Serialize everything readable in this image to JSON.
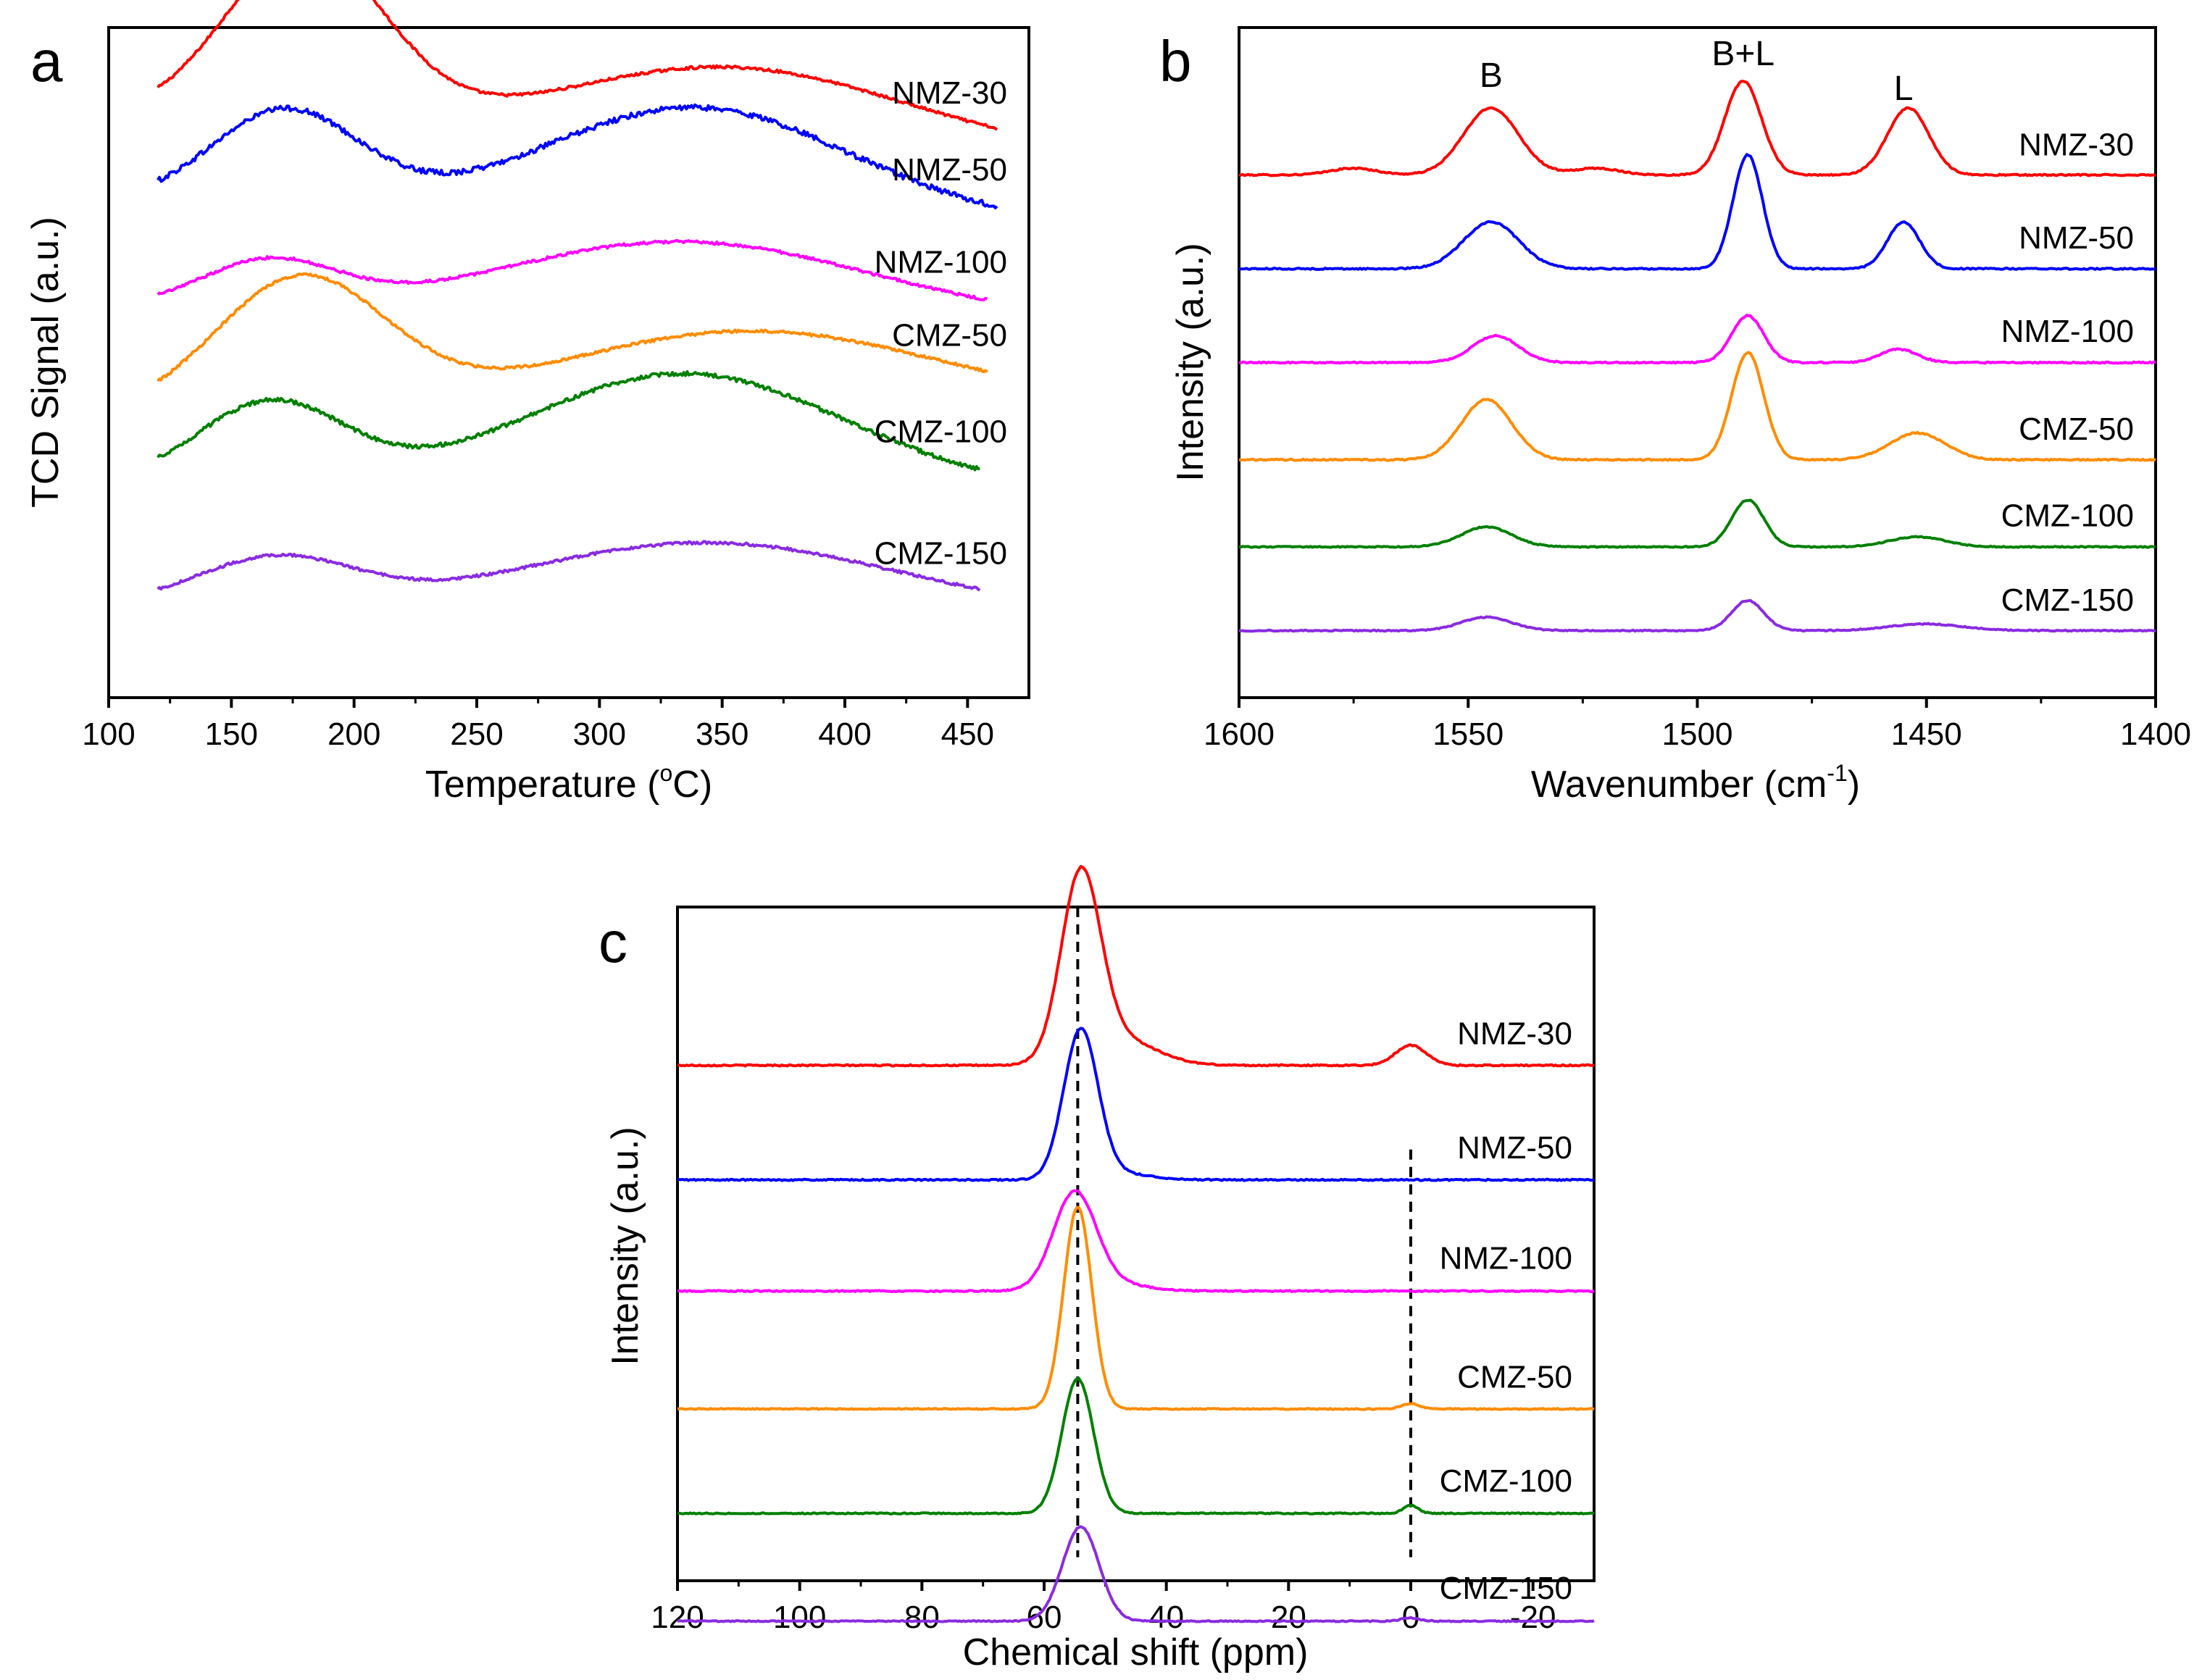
{
  "chart_data": [
    {
      "panel": "a",
      "type": "line",
      "xlabel": "Temperature (",
      "xlabel_sup": "o",
      "xlabel_tail": "C)",
      "ylabel": "TCD Signal (a.u.)",
      "xlim": [
        100,
        475
      ],
      "x_ticks": [
        "100",
        "150",
        "200",
        "250",
        "300",
        "350",
        "400",
        "450"
      ],
      "x_tick_values": [
        100,
        150,
        200,
        250,
        300,
        350,
        400,
        450
      ],
      "y_ticks": false,
      "series": [
        {
          "name": "NMZ-30",
          "color": "#ff0000",
          "x_range": [
            120,
            462
          ],
          "baseline": 0.865,
          "slope": -0.05,
          "peaks": [
            {
              "c": 180,
              "h": 0.26,
              "w": 32
            },
            {
              "c": 355,
              "h": 0.11,
              "w": 70
            }
          ],
          "noise": 0.002
        },
        {
          "name": "NMZ-50",
          "color": "#0000ff",
          "x_range": [
            120,
            462
          ],
          "baseline": 0.74,
          "slope": -0.03,
          "peaks": [
            {
              "c": 172,
              "h": 0.14,
              "w": 30
            },
            {
              "c": 340,
              "h": 0.16,
              "w": 62
            }
          ],
          "noise": 0.004
        },
        {
          "name": "NMZ-100",
          "color": "#ff00ff",
          "x_range": [
            120,
            458
          ],
          "baseline": 0.58,
          "slope": -0.015,
          "peaks": [
            {
              "c": 165,
              "h": 0.07,
              "w": 28
            },
            {
              "c": 335,
              "h": 0.11,
              "w": 75
            }
          ],
          "noise": 0.002
        },
        {
          "name": "CMZ-50",
          "color": "#ff8c00",
          "x_range": [
            120,
            458
          ],
          "baseline": 0.42,
          "slope": 0.01,
          "peaks": [
            {
              "c": 178,
              "h": 0.2,
              "w": 35
            },
            {
              "c": 360,
              "h": 0.12,
              "w": 80
            }
          ],
          "noise": 0.002
        },
        {
          "name": "CMZ-100",
          "color": "#008000",
          "x_range": [
            120,
            455
          ],
          "baseline": 0.32,
          "slope": -0.01,
          "peaks": [
            {
              "c": 166,
              "h": 0.12,
              "w": 30
            },
            {
              "c": 335,
              "h": 0.17,
              "w": 65
            }
          ],
          "noise": 0.003
        },
        {
          "name": "CMZ-150",
          "color": "#8a2be2",
          "x_range": [
            120,
            455
          ],
          "baseline": 0.138,
          "slope": -0.01,
          "peaks": [
            {
              "c": 168,
              "h": 0.07,
              "w": 32
            },
            {
              "c": 345,
              "h": 0.1,
              "w": 75
            }
          ],
          "noise": 0.002
        }
      ]
    },
    {
      "panel": "b",
      "type": "line",
      "xlabel": "Wavenumber (cm",
      "xlabel_sup": "-1",
      "xlabel_tail": ")",
      "ylabel": "Intensity (a.u.)",
      "xlim": [
        1600,
        1400
      ],
      "x_ticks": [
        "1600",
        "1550",
        "1500",
        "1450",
        "1400"
      ],
      "x_tick_values": [
        1600,
        1550,
        1500,
        1450,
        1400
      ],
      "y_ticks": false,
      "annotations": [
        {
          "text": "B",
          "x": 1545
        },
        {
          "text": "B+L",
          "x": 1490
        },
        {
          "text": "L",
          "x": 1455
        }
      ],
      "series": [
        {
          "name": "NMZ-30",
          "color": "#ff0000",
          "x_range": [
            1600,
            1400
          ],
          "baseline": 0.78,
          "slope": 0,
          "peaks": [
            {
              "c": 1545,
              "h": 0.1,
              "w": 6
            },
            {
              "c": 1490,
              "h": 0.14,
              "w": 4
            },
            {
              "c": 1454,
              "h": 0.1,
              "w": 4.5
            },
            {
              "c": 1575,
              "h": 0.01,
              "w": 5
            },
            {
              "c": 1522,
              "h": 0.01,
              "w": 5
            }
          ],
          "noise": 0.001
        },
        {
          "name": "NMZ-50",
          "color": "#0000ff",
          "x_range": [
            1600,
            1400
          ],
          "baseline": 0.64,
          "slope": 0,
          "peaks": [
            {
              "c": 1545,
              "h": 0.07,
              "w": 6
            },
            {
              "c": 1489,
              "h": 0.17,
              "w": 3.2
            },
            {
              "c": 1455,
              "h": 0.07,
              "w": 3.5
            }
          ],
          "noise": 0.001
        },
        {
          "name": "NMZ-100",
          "color": "#ff00ff",
          "x_range": [
            1600,
            1400
          ],
          "baseline": 0.5,
          "slope": 0,
          "peaks": [
            {
              "c": 1544,
              "h": 0.04,
              "w": 5
            },
            {
              "c": 1489,
              "h": 0.07,
              "w": 3.5
            },
            {
              "c": 1456,
              "h": 0.02,
              "w": 4
            }
          ],
          "noise": 0.001
        },
        {
          "name": "CMZ-50",
          "color": "#ff8c00",
          "x_range": [
            1600,
            1400
          ],
          "baseline": 0.355,
          "slope": 0,
          "peaks": [
            {
              "c": 1546,
              "h": 0.09,
              "w": 5.5
            },
            {
              "c": 1489,
              "h": 0.16,
              "w": 3.5
            },
            {
              "c": 1452,
              "h": 0.04,
              "w": 6
            }
          ],
          "noise": 0.001
        },
        {
          "name": "CMZ-100",
          "color": "#008000",
          "x_range": [
            1600,
            1400
          ],
          "baseline": 0.225,
          "slope": 0,
          "peaks": [
            {
              "c": 1546,
              "h": 0.03,
              "w": 5.5
            },
            {
              "c": 1489,
              "h": 0.07,
              "w": 3.5
            },
            {
              "c": 1452,
              "h": 0.015,
              "w": 6
            }
          ],
          "noise": 0.0008
        },
        {
          "name": "CMZ-150",
          "color": "#8a2be2",
          "x_range": [
            1600,
            1400
          ],
          "baseline": 0.1,
          "slope": 0,
          "peaks": [
            {
              "c": 1546,
              "h": 0.02,
              "w": 5.5
            },
            {
              "c": 1489,
              "h": 0.045,
              "w": 3.5
            },
            {
              "c": 1450,
              "h": 0.01,
              "w": 8
            }
          ],
          "noise": 0.0008
        }
      ]
    },
    {
      "panel": "c",
      "type": "line",
      "xlabel": "Chemical shift (ppm)",
      "ylabel": "Intensity (a.u.)",
      "xlim": [
        120,
        -30
      ],
      "x_ticks": [
        "120",
        "100",
        "80",
        "60",
        "40",
        "20",
        "0",
        "-20"
      ],
      "x_tick_values": [
        120,
        100,
        80,
        60,
        40,
        20,
        0,
        -20
      ],
      "y_ticks": false,
      "reference_lines": [
        54.5,
        0
      ],
      "series": [
        {
          "name": "NMZ-30",
          "color": "#ff0000",
          "x_range": [
            120,
            -30
          ],
          "baseline": 0.765,
          "slope": 0,
          "peaks": [
            {
              "c": 54,
              "h": 0.27,
              "w": 3.2
            },
            {
              "c": 48,
              "h": 0.04,
              "w": 6
            },
            {
              "c": 0,
              "h": 0.03,
              "w": 2.5
            }
          ],
          "noise": 0.001
        },
        {
          "name": "NMZ-50",
          "color": "#0000ff",
          "x_range": [
            120,
            -30
          ],
          "baseline": 0.595,
          "slope": 0,
          "peaks": [
            {
              "c": 54,
              "h": 0.22,
              "w": 2.8
            },
            {
              "c": 48,
              "h": 0.01,
              "w": 5
            }
          ],
          "noise": 0.001
        },
        {
          "name": "NMZ-100",
          "color": "#ff00ff",
          "x_range": [
            120,
            -30
          ],
          "baseline": 0.43,
          "slope": 0,
          "peaks": [
            {
              "c": 55,
              "h": 0.145,
              "w": 3.5
            },
            {
              "c": 48,
              "h": 0.01,
              "w": 5
            }
          ],
          "noise": 0.001
        },
        {
          "name": "CMZ-50",
          "color": "#ff8c00",
          "x_range": [
            120,
            -30
          ],
          "baseline": 0.255,
          "slope": 0,
          "peaks": [
            {
              "c": 54.5,
              "h": 0.3,
              "w": 2.3
            },
            {
              "c": 0,
              "h": 0.008,
              "w": 1.5
            }
          ],
          "noise": 0.0008
        },
        {
          "name": "CMZ-100",
          "color": "#008000",
          "x_range": [
            120,
            -30
          ],
          "baseline": 0.1,
          "slope": 0,
          "peaks": [
            {
              "c": 54.5,
              "h": 0.2,
              "w": 2.6
            },
            {
              "c": 0,
              "h": 0.012,
              "w": 1.2
            }
          ],
          "noise": 0.0008
        },
        {
          "name": "CMZ-150",
          "color": "#8a2be2",
          "x_range": [
            120,
            -30
          ],
          "baseline": -0.06,
          "slope": 0,
          "peaks": [
            {
              "c": 54,
              "h": 0.14,
              "w": 3
            },
            {
              "c": 0,
              "h": 0.005,
              "w": 1.5
            }
          ],
          "noise": 0.0008
        }
      ]
    }
  ]
}
